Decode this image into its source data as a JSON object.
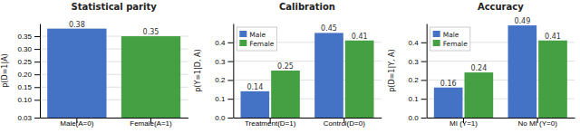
{
  "chart_data": [
    {
      "type": "bar",
      "title": "Statistical parity",
      "ylabel": "p(D=1|A)",
      "categories": [
        "Male(A=0)",
        "Female(A=1)"
      ],
      "values": [
        0.38,
        0.35
      ],
      "colors": [
        "#4472c4",
        "#44a043"
      ],
      "ylim": [
        0.03,
        0.4
      ],
      "yticks": [
        0.03,
        {
          "value": 0.1,
          "label": "0.10"
        },
        0.15,
        {
          "value": 0.2,
          "label": "0.20"
        },
        0.25,
        {
          "value": 0.3,
          "label": "0.30"
        },
        0.35
      ],
      "grid": true,
      "data_labels": true
    },
    {
      "type": "bar",
      "title": "Calibration",
      "ylabel": "p(Y=1|D, A)",
      "categories": [
        "Treatment(D=1)",
        "Control(D=0)"
      ],
      "series": [
        {
          "name": "Male",
          "color": "#4472c4",
          "values": [
            0.14,
            0.45
          ]
        },
        {
          "name": "Female",
          "color": "#44a043",
          "values": [
            0.25,
            0.41
          ]
        }
      ],
      "ylim": [
        0.0,
        0.5
      ],
      "yticks": [
        {
          "value": 0.0,
          "label": "0.0"
        },
        0.1,
        0.2,
        0.3,
        0.4
      ],
      "grid": true,
      "data_labels": true,
      "legend": "upper-left"
    },
    {
      "type": "bar",
      "title": "Accuracy",
      "ylabel": "p(D=1|Y, A)",
      "categories": [
        "MI (Y=1)",
        "No MI (Y=0)"
      ],
      "series": [
        {
          "name": "Male",
          "color": "#4472c4",
          "values": [
            0.16,
            0.49
          ]
        },
        {
          "name": "Female",
          "color": "#44a043",
          "values": [
            0.24,
            0.41
          ]
        }
      ],
      "ylim": [
        0.0,
        0.5
      ],
      "yticks": [
        {
          "value": 0.0,
          "label": "0.0"
        },
        0.1,
        0.2,
        0.3,
        0.4
      ],
      "grid": true,
      "data_labels": true,
      "legend": "upper-left"
    }
  ]
}
